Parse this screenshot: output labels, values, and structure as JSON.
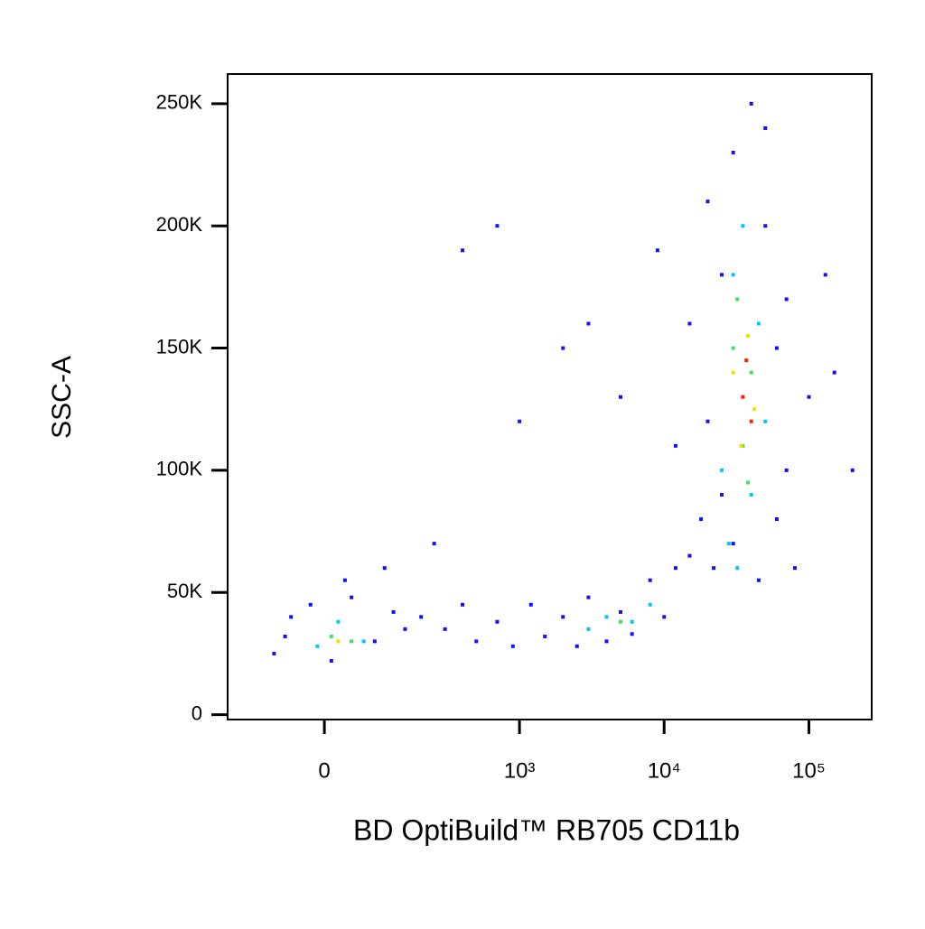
{
  "chart_data": {
    "type": "scatter",
    "x_label": "BD OptiBuild™ RB705 CD11b",
    "y_label": "SSC-A",
    "xscale": "biexponential",
    "xlim": [
      -200,
      271500
    ],
    "ylim": [
      -2000,
      262144
    ],
    "xticks": [
      0,
      {
        "value": 1000,
        "label": "10³"
      },
      {
        "value": 10000,
        "label": "10⁴"
      },
      {
        "value": 100000,
        "label": "10⁵"
      }
    ],
    "yticks": [
      0,
      {
        "value": 50000,
        "label": "50K"
      },
      {
        "value": 100000,
        "label": "100K"
      },
      {
        "value": 150000,
        "label": "150K"
      },
      {
        "value": 200000,
        "label": "200K"
      },
      {
        "value": 250000,
        "label": "250K"
      }
    ],
    "series": [
      {
        "color": "#1010ff",
        "x": [
          -80,
          -50,
          -20,
          10,
          40,
          80,
          120,
          150,
          -60,
          30,
          100,
          200,
          300,
          400,
          500,
          700,
          900,
          1200,
          1500,
          2000,
          2500,
          3000,
          4000,
          5000,
          6000,
          8000,
          10000,
          12000,
          15000,
          18000,
          20000,
          25000,
          30000,
          40000,
          50000,
          60000,
          70000,
          80000,
          15000,
          20000,
          25000,
          50000,
          70000,
          100000,
          150000,
          200000,
          22000,
          30000,
          45000,
          60000,
          12000,
          9000,
          400,
          700,
          2000,
          3000,
          5000,
          1000,
          250,
          130000
        ],
        "values": [
          25000,
          40000,
          45000,
          22000,
          48000,
          30000,
          42000,
          35000,
          32000,
          55000,
          60000,
          40000,
          35000,
          45000,
          30000,
          38000,
          28000,
          45000,
          32000,
          40000,
          28000,
          48000,
          30000,
          42000,
          33000,
          55000,
          40000,
          60000,
          65000,
          80000,
          120000,
          180000,
          230000,
          250000,
          200000,
          150000,
          100000,
          60000,
          160000,
          210000,
          90000,
          240000,
          170000,
          130000,
          140000,
          100000,
          60000,
          70000,
          55000,
          80000,
          110000,
          190000,
          190000,
          200000,
          150000,
          160000,
          130000,
          120000,
          70000,
          180000
        ]
      },
      {
        "color": "#00c8ff",
        "x": [
          -10,
          20,
          60,
          3000,
          4000,
          6000,
          8000,
          25000,
          30000,
          40000,
          45000,
          35000,
          28000,
          50000,
          32000
        ],
        "values": [
          28000,
          38000,
          30000,
          35000,
          40000,
          38000,
          45000,
          100000,
          180000,
          90000,
          160000,
          200000,
          70000,
          120000,
          60000
        ]
      },
      {
        "color": "#40e060",
        "x": [
          10,
          40,
          5000,
          30000,
          35000,
          40000,
          32000,
          38000
        ],
        "values": [
          32000,
          30000,
          38000,
          150000,
          110000,
          140000,
          170000,
          95000
        ]
      },
      {
        "color": "#f0e000",
        "x": [
          30000,
          38000,
          42000,
          34000,
          20
        ],
        "values": [
          140000,
          155000,
          125000,
          110000,
          30000
        ]
      },
      {
        "color": "#ff2000",
        "x": [
          35000,
          40000,
          37000
        ],
        "values": [
          130000,
          120000,
          145000
        ]
      }
    ]
  }
}
